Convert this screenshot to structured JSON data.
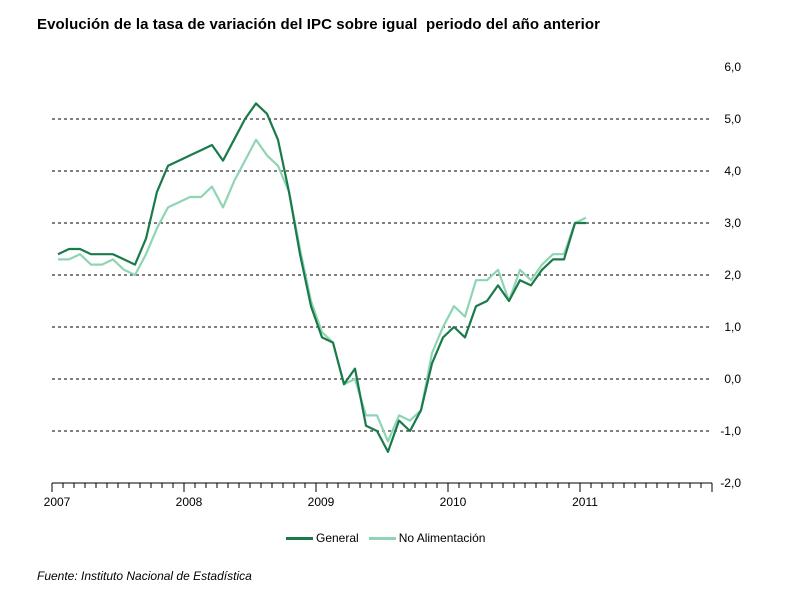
{
  "title": "Evolución de la tasa de variación del IPC sobre igual  periodo del año anterior",
  "source": "Fuente: Instituto Nacional de Estadística",
  "chart_data": {
    "type": "line",
    "x_ticks": [
      "2007",
      "2008",
      "2009",
      "2010",
      "2011"
    ],
    "y_ticks": [
      "6,0",
      "5,0",
      "4,0",
      "3,0",
      "2,0",
      "1,0",
      "0,0",
      "-1,0",
      "-2,0"
    ],
    "ylim": [
      -2,
      6
    ],
    "y_axis_side": "right",
    "grid": "horizontal dashed",
    "legend_position": "bottom",
    "x": [
      "2007-01",
      "2007-02",
      "2007-03",
      "2007-04",
      "2007-05",
      "2007-06",
      "2007-07",
      "2007-08",
      "2007-09",
      "2007-10",
      "2007-11",
      "2007-12",
      "2008-01",
      "2008-02",
      "2008-03",
      "2008-04",
      "2008-05",
      "2008-06",
      "2008-07",
      "2008-08",
      "2008-09",
      "2008-10",
      "2008-11",
      "2008-12",
      "2009-01",
      "2009-02",
      "2009-03",
      "2009-04",
      "2009-05",
      "2009-06",
      "2009-07",
      "2009-08",
      "2009-09",
      "2009-10",
      "2009-11",
      "2009-12",
      "2010-01",
      "2010-02",
      "2010-03",
      "2010-04",
      "2010-05",
      "2010-06",
      "2010-07",
      "2010-08",
      "2010-09",
      "2010-10",
      "2010-11",
      "2010-12",
      "2011-01",
      "2011-02"
    ],
    "series": [
      {
        "name": "General",
        "color": "#1a7a4a",
        "values": [
          2.4,
          2.5,
          2.5,
          2.4,
          2.4,
          2.4,
          2.3,
          2.2,
          2.7,
          3.6,
          4.1,
          4.2,
          4.3,
          4.4,
          4.5,
          4.2,
          4.6,
          5.0,
          5.3,
          5.1,
          4.6,
          3.6,
          2.4,
          1.4,
          0.8,
          0.7,
          -0.1,
          0.2,
          -0.9,
          -1.0,
          -1.4,
          -0.8,
          -1.0,
          -0.6,
          0.3,
          0.8,
          1.0,
          0.8,
          1.4,
          1.5,
          1.8,
          1.5,
          1.9,
          1.8,
          2.1,
          2.3,
          2.3,
          3.0,
          3.0,
          null
        ]
      },
      {
        "name": "No Alimentación",
        "color": "#8fd5b4",
        "values": [
          2.3,
          2.3,
          2.4,
          2.2,
          2.2,
          2.3,
          2.1,
          2.0,
          2.4,
          2.9,
          3.3,
          3.4,
          3.5,
          3.5,
          3.7,
          3.3,
          3.8,
          4.2,
          4.6,
          4.3,
          4.1,
          3.6,
          2.5,
          1.5,
          0.9,
          0.7,
          -0.1,
          0.0,
          -0.7,
          -0.7,
          -1.2,
          -0.7,
          -0.8,
          -0.6,
          0.5,
          1.0,
          1.4,
          1.2,
          1.9,
          1.9,
          2.1,
          1.5,
          2.1,
          1.9,
          2.2,
          2.4,
          2.4,
          3.0,
          3.1,
          null
        ]
      }
    ]
  }
}
